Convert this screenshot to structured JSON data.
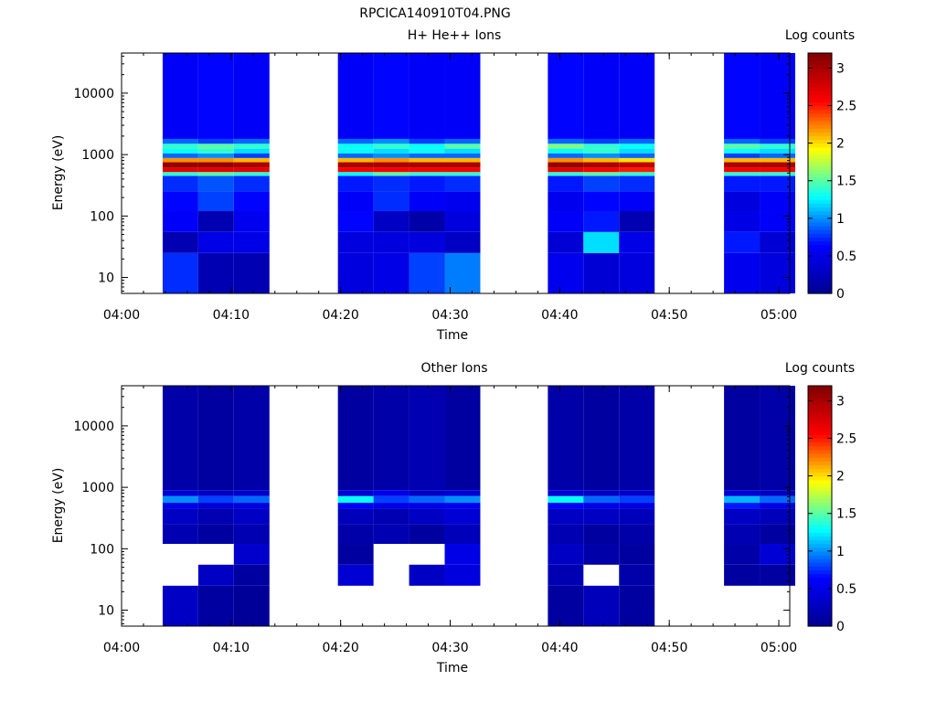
{
  "figure": {
    "title": "RPCICA140910T04.PNG"
  },
  "chart_data": [
    {
      "type": "heatmap",
      "title": "H+ He++ Ions",
      "xlabel": "Time",
      "ylabel": "Energy (eV)",
      "colorbar_label": "Log counts",
      "y_scale": "log",
      "ylim": [
        5.5,
        45000
      ],
      "xlim": [
        "04:00",
        "05:01"
      ],
      "x_ticks": [
        "04:00",
        "04:10",
        "04:20",
        "04:30",
        "04:40",
        "04:50",
        "05:00"
      ],
      "y_ticks": [
        "10",
        "100",
        "1000",
        "10000"
      ],
      "colorbar_ticks": [
        "0",
        "0.5",
        "1",
        "1.5",
        "2",
        "2.5",
        "3"
      ],
      "colorbar_range": [
        0,
        3.2
      ],
      "colormap": [
        "#00008f",
        "#0000ff",
        "#00ffff",
        "#ffff00",
        "#ff0000",
        "#800000"
      ],
      "time_columns": [
        "04:03:45",
        "04:07:00",
        "04:10:15",
        "04:19:45",
        "04:23:00",
        "04:26:15",
        "04:29:30",
        "04:38:55",
        "04:42:10",
        "04:45:25",
        "04:55:00",
        "04:58:15"
      ],
      "column_end": "05:01:30",
      "energy_bands": [
        {
          "range": [
            5.5,
            25
          ],
          "values": [
            0.75,
            0.2,
            0.2,
            0.45,
            0.5,
            0.8,
            0.95,
            0.55,
            0.4,
            0.45,
            0.55,
            0.45
          ]
        },
        {
          "range": [
            25,
            55
          ],
          "values": [
            0.2,
            0.5,
            0.5,
            0.45,
            0.45,
            0.45,
            0.3,
            0.4,
            1.2,
            0.5,
            0.7,
            0.4
          ]
        },
        {
          "range": [
            55,
            120
          ],
          "values": [
            0.6,
            0.2,
            0.55,
            0.65,
            0.3,
            0.15,
            0.45,
            0.6,
            0.7,
            0.2,
            0.5,
            0.6
          ]
        },
        {
          "range": [
            120,
            250
          ],
          "values": [
            0.65,
            0.8,
            0.65,
            0.6,
            0.75,
            0.6,
            0.55,
            0.55,
            0.65,
            0.6,
            0.45,
            0.6
          ]
        },
        {
          "range": [
            250,
            450
          ],
          "values": [
            0.75,
            0.85,
            0.75,
            0.7,
            0.75,
            0.7,
            0.75,
            0.7,
            0.8,
            0.75,
            0.7,
            0.7
          ]
        },
        {
          "range": [
            450,
            520
          ],
          "values": [
            1.4,
            1.5,
            1.4,
            1.3,
            1.5,
            1.4,
            1.4,
            1.4,
            1.5,
            1.4,
            1.4,
            1.4
          ]
        },
        {
          "range": [
            520,
            620
          ],
          "values": [
            2.7,
            2.7,
            2.7,
            2.6,
            2.6,
            2.6,
            2.6,
            2.7,
            2.6,
            2.5,
            2.6,
            2.6
          ]
        },
        {
          "range": [
            620,
            750
          ],
          "values": [
            3.1,
            3.1,
            3.0,
            3.0,
            3.0,
            3.0,
            3.0,
            3.1,
            3.0,
            2.9,
            3.0,
            3.0
          ]
        },
        {
          "range": [
            750,
            880
          ],
          "values": [
            2.2,
            2.2,
            2.1,
            2.1,
            2.2,
            2.1,
            2.1,
            2.2,
            2.1,
            2.0,
            2.1,
            2.1
          ]
        },
        {
          "range": [
            880,
            1050
          ],
          "values": [
            0.9,
            1.0,
            0.8,
            0.9,
            1.0,
            0.9,
            0.9,
            0.9,
            1.0,
            0.9,
            0.8,
            0.9
          ]
        },
        {
          "range": [
            1050,
            1250
          ],
          "values": [
            1.3,
            1.4,
            1.2,
            1.3,
            1.2,
            1.3,
            1.2,
            1.3,
            1.4,
            1.2,
            1.3,
            1.2
          ]
        },
        {
          "range": [
            1250,
            1500
          ],
          "values": [
            1.4,
            1.5,
            1.4,
            1.3,
            1.4,
            1.3,
            1.5,
            1.6,
            1.4,
            1.3,
            1.5,
            1.4
          ]
        },
        {
          "range": [
            1500,
            1800
          ],
          "values": [
            0.9,
            0.8,
            0.9,
            0.9,
            1.0,
            0.8,
            0.9,
            0.9,
            0.8,
            0.9,
            0.9,
            0.8
          ]
        },
        {
          "range": [
            1800,
            45000
          ],
          "values": [
            0.6,
            0.65,
            0.6,
            0.6,
            0.65,
            0.6,
            0.6,
            0.65,
            0.6,
            0.6,
            0.65,
            0.6
          ]
        }
      ]
    },
    {
      "type": "heatmap",
      "title": "Other Ions",
      "xlabel": "Time",
      "ylabel": "Energy (eV)",
      "colorbar_label": "Log counts",
      "y_scale": "log",
      "ylim": [
        5.5,
        45000
      ],
      "xlim": [
        "04:00",
        "05:01"
      ],
      "x_ticks": [
        "04:00",
        "04:10",
        "04:20",
        "04:30",
        "04:40",
        "04:50",
        "05:00"
      ],
      "y_ticks": [
        "10",
        "100",
        "1000",
        "10000"
      ],
      "colorbar_ticks": [
        "0",
        "0.5",
        "1",
        "1.5",
        "2",
        "2.5",
        "3"
      ],
      "colorbar_range": [
        0,
        3.2
      ],
      "colormap": [
        "#00008f",
        "#0000ff",
        "#00ffff",
        "#ffff00",
        "#ff0000",
        "#800000"
      ],
      "time_columns": [
        "04:03:45",
        "04:07:00",
        "04:10:15",
        "04:19:45",
        "04:23:00",
        "04:26:15",
        "04:29:30",
        "04:38:55",
        "04:42:10",
        "04:45:25",
        "04:55:00",
        "04:58:15"
      ],
      "column_end": "05:01:30",
      "energy_bands": [
        {
          "range": [
            5.5,
            25
          ],
          "values": [
            0.3,
            0.1,
            0.05,
            null,
            null,
            null,
            null,
            0.1,
            0.25,
            0.1,
            null,
            null
          ]
        },
        {
          "range": [
            25,
            55
          ],
          "values": [
            null,
            0.3,
            0.1,
            0.4,
            null,
            0.3,
            0.45,
            0.2,
            null,
            0.15,
            0.1,
            0.1
          ]
        },
        {
          "range": [
            55,
            120
          ],
          "values": [
            null,
            null,
            0.35,
            0.1,
            null,
            null,
            0.5,
            0.3,
            0.15,
            0.1,
            0.15,
            0.4
          ]
        },
        {
          "range": [
            120,
            250
          ],
          "values": [
            0.2,
            0.1,
            0.2,
            0.15,
            0.2,
            0.1,
            0.25,
            0.2,
            0.1,
            0.15,
            0.2,
            0.1
          ]
        },
        {
          "range": [
            250,
            450
          ],
          "values": [
            0.3,
            0.2,
            0.3,
            0.25,
            0.2,
            0.3,
            0.4,
            0.3,
            0.3,
            0.25,
            0.3,
            0.25
          ]
        },
        {
          "range": [
            450,
            560
          ],
          "values": [
            0.5,
            0.4,
            0.45,
            0.6,
            0.5,
            0.5,
            0.55,
            0.6,
            0.5,
            0.45,
            0.7,
            0.5
          ]
        },
        {
          "range": [
            560,
            720
          ],
          "values": [
            1.0,
            0.8,
            0.9,
            1.3,
            0.8,
            0.9,
            1.0,
            1.3,
            0.9,
            0.8,
            1.1,
            0.9
          ]
        },
        {
          "range": [
            720,
            900
          ],
          "values": [
            0.4,
            0.3,
            0.35,
            0.4,
            0.5,
            0.3,
            0.4,
            0.4,
            0.3,
            0.35,
            0.4,
            0.3
          ]
        },
        {
          "range": [
            900,
            45000
          ],
          "values": [
            0.15,
            0.1,
            0.15,
            0.1,
            0.15,
            0.2,
            0.1,
            0.15,
            0.1,
            0.15,
            0.1,
            0.15
          ]
        }
      ]
    }
  ]
}
